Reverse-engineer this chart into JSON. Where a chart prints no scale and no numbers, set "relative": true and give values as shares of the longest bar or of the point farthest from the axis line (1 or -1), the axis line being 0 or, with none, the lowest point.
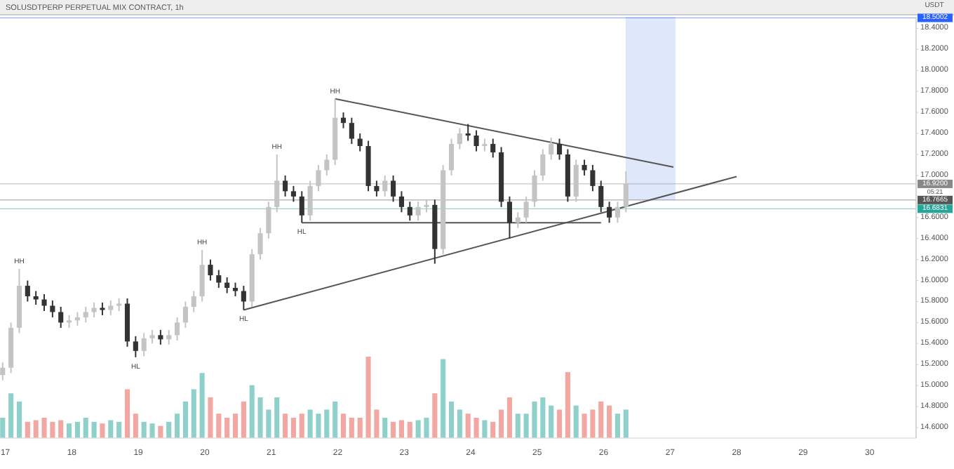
{
  "chart_data": [
    {
      "type": "candlestick",
      "title": "SOLUSDTPERP PERPETUAL MIX CONTRACT, 1h",
      "ylabel": "USDT",
      "x": [
        16.96,
        17.085,
        17.21,
        17.335,
        17.46,
        17.585,
        17.71,
        17.835,
        17.96,
        18.085,
        18.21,
        18.335,
        18.46,
        18.585,
        18.71,
        18.835,
        18.96,
        19.085,
        19.21,
        19.335,
        19.46,
        19.585,
        19.71,
        19.835,
        19.96,
        20.085,
        20.21,
        20.335,
        20.46,
        20.585,
        20.71,
        20.835,
        20.96,
        21.085,
        21.21,
        21.335,
        21.46,
        21.585,
        21.71,
        21.835,
        21.96,
        22.085,
        22.21,
        22.335,
        22.46,
        22.585,
        22.71,
        22.835,
        22.96,
        23.085,
        23.21,
        23.335,
        23.46,
        23.585,
        23.71,
        23.835,
        23.96,
        24.085,
        24.21,
        24.335,
        24.46,
        24.585,
        24.71,
        24.835,
        24.96,
        25.085,
        25.21,
        25.335,
        25.46,
        25.585,
        25.71,
        25.835,
        25.96,
        26.085,
        26.21,
        26.335
      ],
      "ohlc": [
        [
          15.1,
          15.22,
          15.05,
          15.17
        ],
        [
          15.17,
          15.6,
          15.12,
          15.55
        ],
        [
          15.55,
          16.11,
          15.5,
          15.95
        ],
        [
          15.95,
          16.0,
          15.8,
          15.85
        ],
        [
          15.85,
          15.9,
          15.77,
          15.82
        ],
        [
          15.82,
          15.87,
          15.71,
          15.76
        ],
        [
          15.76,
          15.81,
          15.65,
          15.7
        ],
        [
          15.7,
          15.75,
          15.55,
          15.6
        ],
        [
          15.6,
          15.67,
          15.55,
          15.62
        ],
        [
          15.62,
          15.7,
          15.57,
          15.65
        ],
        [
          15.65,
          15.75,
          15.6,
          15.7
        ],
        [
          15.7,
          15.79,
          15.65,
          15.74
        ],
        [
          15.74,
          15.79,
          15.67,
          15.72
        ],
        [
          15.72,
          15.81,
          15.67,
          15.76
        ],
        [
          15.76,
          15.83,
          15.71,
          15.78
        ],
        [
          15.78,
          15.83,
          15.37,
          15.42
        ],
        [
          15.42,
          15.47,
          15.27,
          15.33
        ],
        [
          15.33,
          15.5,
          15.28,
          15.45
        ],
        [
          15.45,
          15.53,
          15.4,
          15.48
        ],
        [
          15.48,
          15.53,
          15.39,
          15.44
        ],
        [
          15.44,
          15.53,
          15.39,
          15.48
        ],
        [
          15.48,
          15.65,
          15.43,
          15.6
        ],
        [
          15.6,
          15.8,
          15.55,
          15.75
        ],
        [
          15.75,
          15.9,
          15.7,
          15.85
        ],
        [
          15.85,
          16.29,
          15.8,
          16.15
        ],
        [
          16.15,
          16.2,
          16.0,
          16.05
        ],
        [
          16.05,
          16.1,
          15.93,
          15.98
        ],
        [
          15.98,
          16.03,
          15.88,
          15.93
        ],
        [
          15.93,
          15.98,
          15.85,
          15.9
        ],
        [
          15.9,
          15.95,
          15.72,
          15.8
        ],
        [
          15.8,
          16.3,
          15.75,
          16.25
        ],
        [
          16.25,
          16.5,
          16.2,
          16.45
        ],
        [
          16.45,
          16.75,
          16.4,
          16.7
        ],
        [
          16.7,
          17.2,
          16.65,
          16.95
        ],
        [
          16.95,
          17.0,
          16.8,
          16.85
        ],
        [
          16.85,
          16.9,
          16.75,
          16.8
        ],
        [
          16.8,
          16.85,
          16.55,
          16.62
        ],
        [
          16.62,
          16.95,
          16.57,
          16.9
        ],
        [
          16.9,
          17.1,
          16.85,
          17.05
        ],
        [
          17.05,
          17.2,
          17.0,
          17.15
        ],
        [
          17.15,
          17.73,
          17.1,
          17.55
        ],
        [
          17.55,
          17.6,
          17.45,
          17.5
        ],
        [
          17.5,
          17.55,
          17.3,
          17.35
        ],
        [
          17.35,
          17.4,
          17.23,
          17.28
        ],
        [
          17.28,
          17.33,
          16.85,
          16.9
        ],
        [
          16.9,
          16.95,
          16.8,
          16.85
        ],
        [
          16.85,
          17.0,
          16.8,
          16.95
        ],
        [
          16.95,
          17.0,
          16.75,
          16.8
        ],
        [
          16.8,
          16.85,
          16.65,
          16.7
        ],
        [
          16.7,
          16.75,
          16.57,
          16.62
        ],
        [
          16.62,
          16.75,
          16.57,
          16.7
        ],
        [
          16.7,
          16.77,
          16.65,
          16.72
        ],
        [
          16.72,
          16.77,
          16.16,
          16.3
        ],
        [
          16.3,
          17.1,
          16.25,
          17.05
        ],
        [
          17.05,
          17.35,
          17.0,
          17.3
        ],
        [
          17.3,
          17.45,
          17.25,
          17.4
        ],
        [
          17.4,
          17.49,
          17.33,
          17.38
        ],
        [
          17.38,
          17.43,
          17.23,
          17.28
        ],
        [
          17.28,
          17.35,
          17.23,
          17.3
        ],
        [
          17.3,
          17.35,
          17.17,
          17.22
        ],
        [
          17.22,
          17.27,
          16.7,
          16.75
        ],
        [
          16.75,
          16.8,
          16.4,
          16.55
        ],
        [
          16.55,
          16.65,
          16.5,
          16.6
        ],
        [
          16.6,
          16.8,
          16.55,
          16.75
        ],
        [
          16.75,
          17.05,
          16.7,
          17.0
        ],
        [
          17.0,
          17.25,
          16.95,
          17.2
        ],
        [
          17.2,
          17.36,
          17.15,
          17.3
        ],
        [
          17.3,
          17.35,
          17.15,
          17.2
        ],
        [
          17.2,
          17.25,
          16.75,
          16.8
        ],
        [
          16.8,
          17.15,
          16.75,
          17.1
        ],
        [
          17.1,
          17.15,
          17.0,
          17.05
        ],
        [
          17.05,
          17.1,
          16.85,
          16.9
        ],
        [
          16.9,
          16.95,
          16.65,
          16.7
        ],
        [
          16.7,
          16.75,
          16.55,
          16.6
        ],
        [
          16.6,
          16.75,
          16.55,
          16.7
        ],
        [
          16.7,
          17.04,
          16.65,
          16.92
        ]
      ],
      "colors": [
        "#c4c4c4",
        "#c4c4c4",
        "#c4c4c4",
        "#333333",
        "#333333",
        "#333333",
        "#333333",
        "#333333",
        "#c4c4c4",
        "#c4c4c4",
        "#c4c4c4",
        "#c4c4c4",
        "#333333",
        "#c4c4c4",
        "#c4c4c4",
        "#333333",
        "#333333",
        "#c4c4c4",
        "#c4c4c4",
        "#333333",
        "#c4c4c4",
        "#c4c4c4",
        "#c4c4c4",
        "#c4c4c4",
        "#c4c4c4",
        "#333333",
        "#333333",
        "#333333",
        "#333333",
        "#333333",
        "#c4c4c4",
        "#c4c4c4",
        "#c4c4c4",
        "#c4c4c4",
        "#333333",
        "#333333",
        "#333333",
        "#c4c4c4",
        "#c4c4c4",
        "#c4c4c4",
        "#c4c4c4",
        "#333333",
        "#333333",
        "#333333",
        "#333333",
        "#333333",
        "#c4c4c4",
        "#333333",
        "#333333",
        "#333333",
        "#c4c4c4",
        "#c4c4c4",
        "#333333",
        "#c4c4c4",
        "#c4c4c4",
        "#c4c4c4",
        "#333333",
        "#333333",
        "#c4c4c4",
        "#333333",
        "#333333",
        "#333333",
        "#c4c4c4",
        "#c4c4c4",
        "#c4c4c4",
        "#c4c4c4",
        "#c4c4c4",
        "#333333",
        "#333333",
        "#c4c4c4",
        "#333333",
        "#333333",
        "#333333",
        "#333333",
        "#c4c4c4",
        "#c4c4c4"
      ],
      "series": [
        {
          "type": "line",
          "color": "#555555",
          "x": [
            21.96,
            27.05
          ],
          "values": [
            17.73,
            17.08
          ]
        },
        {
          "type": "line",
          "color": "#555555",
          "x": [
            20.585,
            28.0
          ],
          "values": [
            15.72,
            16.99
          ]
        },
        {
          "type": "line",
          "color": "#555555",
          "x": [
            21.46,
            25.96
          ],
          "values": [
            16.55,
            16.55
          ]
        }
      ],
      "xlim": [
        16.92,
        30.7
      ],
      "xticks": [
        17,
        18,
        19,
        20,
        21,
        22,
        23,
        24,
        25,
        26,
        27,
        28,
        29,
        30
      ],
      "ylim": [
        14.5,
        18.51
      ],
      "yticks": [
        {
          "value": 14.6,
          "label": "14.6000"
        },
        {
          "value": 14.8,
          "label": "14.8000"
        },
        {
          "value": 15.0,
          "label": "15.0000"
        },
        {
          "value": 15.2,
          "label": "15.2000"
        },
        {
          "value": 15.4,
          "label": "15.4000"
        },
        {
          "value": 15.6,
          "label": "15.6000"
        },
        {
          "value": 15.8,
          "label": "15.8000"
        },
        {
          "value": 16.0,
          "label": "16.0000"
        },
        {
          "value": 16.2,
          "label": "16.2000"
        },
        {
          "value": 16.4,
          "label": "16.4000"
        },
        {
          "value": 16.6,
          "label": "16.6000"
        },
        {
          "value": 17.0,
          "label": "17.0000"
        },
        {
          "value": 17.2,
          "label": "17.2000"
        },
        {
          "value": 17.4,
          "label": "17.4000"
        },
        {
          "value": 17.6,
          "label": "17.6000"
        },
        {
          "value": 17.8,
          "label": "17.8000"
        },
        {
          "value": 18.0,
          "label": "18.0000"
        },
        {
          "value": 18.2,
          "label": "18.2000"
        },
        {
          "value": 18.4,
          "label": "18.4000"
        }
      ],
      "ref_lines": [
        {
          "axis": "y",
          "value": 16.92,
          "label": "16.9200\n05:21",
          "color": "#888888"
        },
        {
          "axis": "y",
          "value": 18.5002,
          "label": "18.5002",
          "color": "#2962ff"
        },
        {
          "axis": "y",
          "value": 16.7665,
          "label": "16.7665",
          "color": "#555555"
        },
        {
          "axis": "y",
          "value": 16.6831,
          "label": "16.6831",
          "color": "#26a69a"
        }
      ],
      "bands": [
        {
          "axis": "x",
          "from": 26.33,
          "to": 27.08,
          "color": "#dfe8fb"
        }
      ],
      "annotations": [
        {
          "text": "HH",
          "x": 17.21,
          "y": 16.11
        },
        {
          "text": "HL",
          "x": 18.96,
          "y": 15.27
        },
        {
          "text": "HH",
          "x": 19.96,
          "y": 16.29
        },
        {
          "text": "HL",
          "x": 20.585,
          "y": 15.72
        },
        {
          "text": "HH",
          "x": 21.085,
          "y": 17.2
        },
        {
          "text": "HL",
          "x": 21.46,
          "y": 16.55
        },
        {
          "text": "HH",
          "x": 21.96,
          "y": 17.73
        }
      ],
      "grid": false
    },
    {
      "type": "bar",
      "relative": true,
      "categories": [
        null,
        null,
        null,
        null,
        null,
        null,
        null,
        null,
        null,
        null,
        null,
        null,
        null,
        null,
        null,
        null,
        null,
        null,
        null,
        null,
        null,
        null,
        null,
        null,
        null,
        null,
        null,
        null,
        null,
        null,
        null,
        null,
        null,
        null,
        null,
        null,
        null,
        null,
        null,
        null,
        null,
        null,
        null,
        null,
        null,
        null,
        null,
        null,
        null,
        null,
        null,
        null,
        null,
        null,
        null,
        null,
        null,
        null,
        null,
        null,
        null,
        null,
        null,
        null,
        null,
        null,
        null,
        null,
        null,
        null,
        null,
        null,
        null,
        null,
        null,
        null
      ],
      "values": [
        0.25,
        0.55,
        0.45,
        0.2,
        0.22,
        0.25,
        0.2,
        0.22,
        0.18,
        0.2,
        0.25,
        0.2,
        0.18,
        0.22,
        0.2,
        0.6,
        0.3,
        0.2,
        0.18,
        0.15,
        0.2,
        0.3,
        0.45,
        0.6,
        0.8,
        0.5,
        0.3,
        0.25,
        0.3,
        0.45,
        0.65,
        0.5,
        0.35,
        0.5,
        0.3,
        0.25,
        0.3,
        0.35,
        0.3,
        0.35,
        0.45,
        0.3,
        0.25,
        0.25,
        1,
        0.35,
        0.25,
        0.2,
        0.22,
        0.2,
        0.22,
        0.25,
        0.55,
        0.97,
        0.45,
        0.35,
        0.3,
        0.25,
        0.22,
        0.2,
        0.35,
        0.5,
        0.3,
        0.3,
        0.45,
        0.5,
        0.4,
        0.35,
        0.81,
        0.4,
        0.3,
        0.35,
        0.45,
        0.4,
        0.3,
        0.35
      ],
      "colors": [
        "#8fd1ca",
        "#8fd1ca",
        "#8fd1ca",
        "#f2a7a2",
        "#f2a7a2",
        "#f2a7a2",
        "#f2a7a2",
        "#f2a7a2",
        "#8fd1ca",
        "#8fd1ca",
        "#8fd1ca",
        "#8fd1ca",
        "#f2a7a2",
        "#8fd1ca",
        "#8fd1ca",
        "#f2a7a2",
        "#f2a7a2",
        "#8fd1ca",
        "#8fd1ca",
        "#f2a7a2",
        "#8fd1ca",
        "#8fd1ca",
        "#8fd1ca",
        "#8fd1ca",
        "#8fd1ca",
        "#f2a7a2",
        "#f2a7a2",
        "#f2a7a2",
        "#f2a7a2",
        "#f2a7a2",
        "#8fd1ca",
        "#8fd1ca",
        "#8fd1ca",
        "#8fd1ca",
        "#f2a7a2",
        "#f2a7a2",
        "#f2a7a2",
        "#8fd1ca",
        "#8fd1ca",
        "#8fd1ca",
        "#8fd1ca",
        "#f2a7a2",
        "#f2a7a2",
        "#f2a7a2",
        "#f2a7a2",
        "#f2a7a2",
        "#8fd1ca",
        "#f2a7a2",
        "#f2a7a2",
        "#f2a7a2",
        "#8fd1ca",
        "#8fd1ca",
        "#f2a7a2",
        "#8fd1ca",
        "#8fd1ca",
        "#8fd1ca",
        "#f2a7a2",
        "#f2a7a2",
        "#8fd1ca",
        "#f2a7a2",
        "#f2a7a2",
        "#f2a7a2",
        "#8fd1ca",
        "#8fd1ca",
        "#8fd1ca",
        "#8fd1ca",
        "#8fd1ca",
        "#f2a7a2",
        "#f2a7a2",
        "#8fd1ca",
        "#f2a7a2",
        "#f2a7a2",
        "#f2a7a2",
        "#f2a7a2",
        "#8fd1ca",
        "#8fd1ca"
      ]
    }
  ]
}
